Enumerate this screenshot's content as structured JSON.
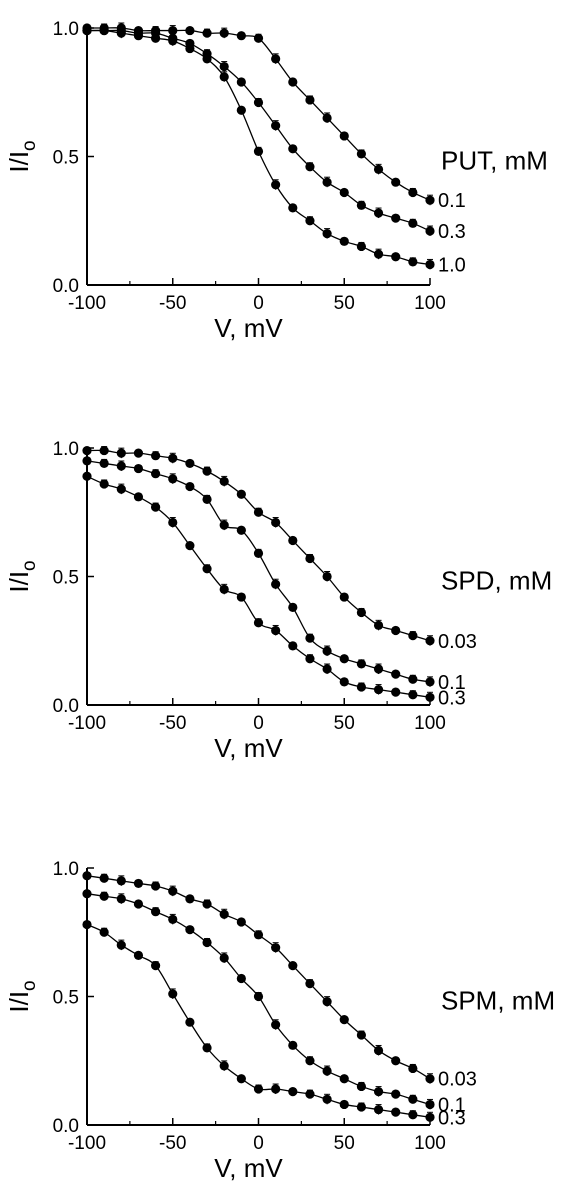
{
  "chart_data": [
    {
      "type": "line",
      "xlabel": "V, mV",
      "ylabel": "I/Io",
      "legend_title": "PUT, mM",
      "xlim": [
        -100,
        100
      ],
      "ylim": [
        0,
        1
      ],
      "xticks": [
        "-100",
        "-50",
        "0",
        "50",
        "100"
      ],
      "yticks": [
        "0.0",
        "0.5",
        "1.0"
      ],
      "grid": false,
      "series": [
        {
          "name": "0.1",
          "x": [
            -100,
            -90,
            -80,
            -70,
            -60,
            -50,
            -40,
            -30,
            -20,
            -10,
            0,
            10,
            20,
            30,
            40,
            50,
            60,
            70,
            80,
            90,
            100
          ],
          "y": [
            1.0,
            1.0,
            1.0,
            0.99,
            0.99,
            0.99,
            0.99,
            0.98,
            0.98,
            0.97,
            0.96,
            0.88,
            0.79,
            0.72,
            0.65,
            0.58,
            0.51,
            0.45,
            0.4,
            0.36,
            0.33
          ]
        },
        {
          "name": "0.3",
          "x": [
            -100,
            -90,
            -80,
            -70,
            -60,
            -50,
            -40,
            -30,
            -20,
            -10,
            0,
            10,
            20,
            30,
            40,
            50,
            60,
            70,
            80,
            90,
            100
          ],
          "y": [
            0.99,
            0.99,
            0.99,
            0.98,
            0.98,
            0.96,
            0.94,
            0.9,
            0.85,
            0.79,
            0.71,
            0.62,
            0.53,
            0.46,
            0.4,
            0.36,
            0.31,
            0.28,
            0.26,
            0.24,
            0.21
          ]
        },
        {
          "name": "1.0",
          "x": [
            -100,
            -90,
            -80,
            -70,
            -60,
            -50,
            -40,
            -30,
            -20,
            -10,
            0,
            10,
            20,
            30,
            40,
            50,
            60,
            70,
            80,
            90,
            100
          ],
          "y": [
            0.99,
            0.99,
            0.98,
            0.97,
            0.96,
            0.95,
            0.92,
            0.88,
            0.81,
            0.68,
            0.52,
            0.39,
            0.3,
            0.25,
            0.2,
            0.17,
            0.15,
            0.12,
            0.11,
            0.09,
            0.08
          ]
        }
      ]
    },
    {
      "type": "line",
      "xlabel": "V, mV",
      "ylabel": "I/Io",
      "legend_title": "SPD, mM",
      "xlim": [
        -100,
        100
      ],
      "ylim": [
        0,
        1
      ],
      "xticks": [
        "-100",
        "-50",
        "0",
        "50",
        "100"
      ],
      "yticks": [
        "0.0",
        "0.5",
        "1.0"
      ],
      "grid": false,
      "series": [
        {
          "name": "0.03",
          "x": [
            -100,
            -90,
            -80,
            -70,
            -60,
            -50,
            -40,
            -30,
            -20,
            -10,
            0,
            10,
            20,
            30,
            40,
            50,
            60,
            70,
            80,
            90,
            100
          ],
          "y": [
            0.99,
            0.99,
            0.98,
            0.98,
            0.97,
            0.96,
            0.94,
            0.91,
            0.87,
            0.82,
            0.75,
            0.71,
            0.64,
            0.57,
            0.5,
            0.42,
            0.36,
            0.31,
            0.29,
            0.27,
            0.25
          ]
        },
        {
          "name": "0.1",
          "x": [
            -100,
            -90,
            -80,
            -70,
            -60,
            -50,
            -40,
            -30,
            -20,
            -10,
            0,
            10,
            20,
            30,
            40,
            50,
            60,
            70,
            80,
            90,
            100
          ],
          "y": [
            0.95,
            0.94,
            0.93,
            0.92,
            0.9,
            0.88,
            0.85,
            0.8,
            0.7,
            0.68,
            0.59,
            0.47,
            0.38,
            0.26,
            0.21,
            0.18,
            0.16,
            0.14,
            0.12,
            0.1,
            0.09
          ]
        },
        {
          "name": "0.3",
          "x": [
            -100,
            -90,
            -80,
            -70,
            -60,
            -50,
            -40,
            -30,
            -20,
            -10,
            0,
            10,
            20,
            30,
            40,
            50,
            60,
            70,
            80,
            90,
            100
          ],
          "y": [
            0.89,
            0.86,
            0.84,
            0.81,
            0.77,
            0.71,
            0.62,
            0.53,
            0.45,
            0.42,
            0.32,
            0.29,
            0.23,
            0.18,
            0.14,
            0.09,
            0.07,
            0.06,
            0.05,
            0.04,
            0.03
          ]
        }
      ]
    },
    {
      "type": "line",
      "xlabel": "V, mV",
      "ylabel": "I/Io",
      "legend_title": "SPM, mM",
      "xlim": [
        -100,
        100
      ],
      "ylim": [
        0,
        1
      ],
      "xticks": [
        "-100",
        "-50",
        "0",
        "50",
        "100"
      ],
      "yticks": [
        "0.0",
        "0.5",
        "1.0"
      ],
      "grid": false,
      "series": [
        {
          "name": "0.03",
          "x": [
            -100,
            -90,
            -80,
            -70,
            -60,
            -50,
            -40,
            -30,
            -20,
            -10,
            0,
            10,
            20,
            30,
            40,
            50,
            60,
            70,
            80,
            90,
            100
          ],
          "y": [
            0.97,
            0.96,
            0.95,
            0.94,
            0.93,
            0.91,
            0.88,
            0.86,
            0.82,
            0.79,
            0.74,
            0.69,
            0.62,
            0.55,
            0.48,
            0.41,
            0.35,
            0.29,
            0.25,
            0.22,
            0.18
          ]
        },
        {
          "name": "0.1",
          "x": [
            -100,
            -90,
            -80,
            -70,
            -60,
            -50,
            -40,
            -30,
            -20,
            -10,
            0,
            10,
            20,
            30,
            40,
            50,
            60,
            70,
            80,
            90,
            100
          ],
          "y": [
            0.9,
            0.89,
            0.88,
            0.86,
            0.83,
            0.8,
            0.76,
            0.71,
            0.65,
            0.57,
            0.5,
            0.39,
            0.31,
            0.25,
            0.21,
            0.18,
            0.15,
            0.13,
            0.12,
            0.1,
            0.08
          ]
        },
        {
          "name": "0.3",
          "x": [
            -100,
            -90,
            -80,
            -70,
            -60,
            -50,
            -40,
            -30,
            -20,
            -10,
            0,
            10,
            20,
            30,
            40,
            50,
            60,
            70,
            80,
            90,
            100
          ],
          "y": [
            0.78,
            0.75,
            0.7,
            0.66,
            0.62,
            0.51,
            0.4,
            0.3,
            0.23,
            0.18,
            0.14,
            0.14,
            0.13,
            0.12,
            0.1,
            0.08,
            0.07,
            0.06,
            0.05,
            0.04,
            0.03
          ]
        }
      ]
    }
  ],
  "colors": {
    "ink": "#000000",
    "background": "#ffffff"
  }
}
